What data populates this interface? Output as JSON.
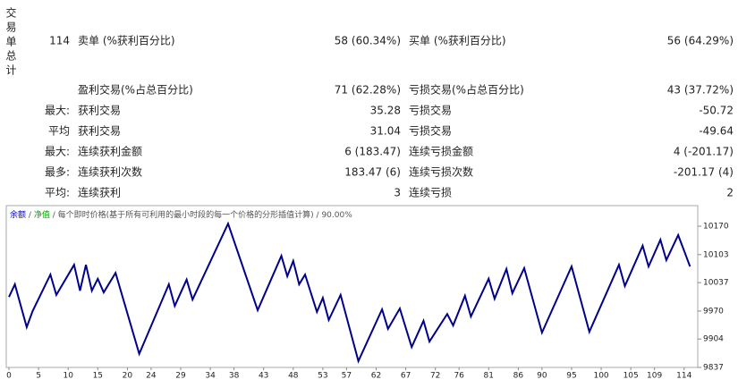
{
  "table": {
    "side_label": "交易单总计",
    "rows": [
      {
        "lead": "114",
        "left_label": "卖单 (%获利百分比)",
        "left_value": "58 (60.34%)",
        "right_label": "买单 (%获利百分比)",
        "right_value": "56 (64.29%)"
      },
      {
        "left_label": "盈利交易(%占总百分比)",
        "left_value": "71 (62.28%)",
        "right_label": "亏损交易(%占总百分比)",
        "right_value": "43 (37.72%)"
      },
      {
        "lead": "最大:",
        "left_label": "获利交易",
        "left_value": "35.28",
        "right_label": "亏损交易",
        "right_value": "-50.72"
      },
      {
        "lead": "平均",
        "left_label": "获利交易",
        "left_value": "31.04",
        "right_label": "亏损交易",
        "right_value": "-49.64"
      },
      {
        "lead": "最大:",
        "left_label": "连续获利金额",
        "left_value": "6 (183.47)",
        "right_label": "连续亏损金额",
        "right_value": "4 (-201.17)"
      },
      {
        "lead": "最多:",
        "left_label": "连续获利次数",
        "left_value": "183.47 (6)",
        "right_label": "连续亏损次数",
        "right_value": "-201.17 (4)"
      },
      {
        "lead": "平均:",
        "left_label": "连续获利",
        "left_value": "3",
        "right_label": "连续亏损",
        "right_value": "2"
      }
    ]
  },
  "chart_data": {
    "type": "line",
    "legend": [
      {
        "text": "余额",
        "color": "#0000cc"
      },
      {
        "text": "净值",
        "color": "#00aa00"
      },
      {
        "text": "每个即时价格(基于所有可利用的最小时段的每一个价格的分形插值计算)",
        "color": "#555555"
      },
      {
        "text": "90.00%",
        "color": "#555555"
      }
    ],
    "legend_separator": "/",
    "xlim": [
      0,
      116
    ],
    "xticks": [
      0,
      5,
      10,
      15,
      20,
      24,
      29,
      34,
      38,
      43,
      48,
      53,
      57,
      62,
      67,
      72,
      76,
      81,
      86,
      90,
      95,
      100,
      105,
      109,
      114
    ],
    "ylim": [
      9837,
      10208
    ],
    "yticks": [
      9837,
      9904,
      9970,
      10037,
      10103,
      10170
    ],
    "series": [
      {
        "name": "余额",
        "color": "#00008b",
        "x": [
          0,
          1,
          3,
          4,
          7,
          8,
          11,
          12,
          13,
          14,
          15,
          16,
          18,
          22,
          27,
          28,
          30,
          31,
          37,
          42,
          46,
          47,
          48,
          49,
          50,
          52,
          53,
          54,
          56,
          59,
          63,
          64,
          66,
          68,
          70,
          71,
          74,
          75,
          77,
          78,
          81,
          82,
          84,
          85,
          87,
          90,
          95,
          98,
          103,
          104,
          107,
          108,
          110,
          111,
          113,
          115
        ],
        "values": [
          10003,
          10033,
          9932,
          9970,
          10056,
          10008,
          10079,
          10018,
          10079,
          10018,
          10046,
          10014,
          10060,
          9869,
          10033,
          9982,
          10044,
          9997,
          10176,
          9972,
          10100,
          10052,
          10088,
          10033,
          10056,
          9968,
          10001,
          9949,
          10008,
          9852,
          9974,
          9928,
          9976,
          9885,
          9947,
          9898,
          9963,
          9936,
          10006,
          9957,
          10046,
          9999,
          10069,
          10012,
          10071,
          9919,
          10075,
          9921,
          10079,
          10029,
          10124,
          10075,
          10138,
          10090,
          10149,
          10075
        ]
      }
    ]
  }
}
